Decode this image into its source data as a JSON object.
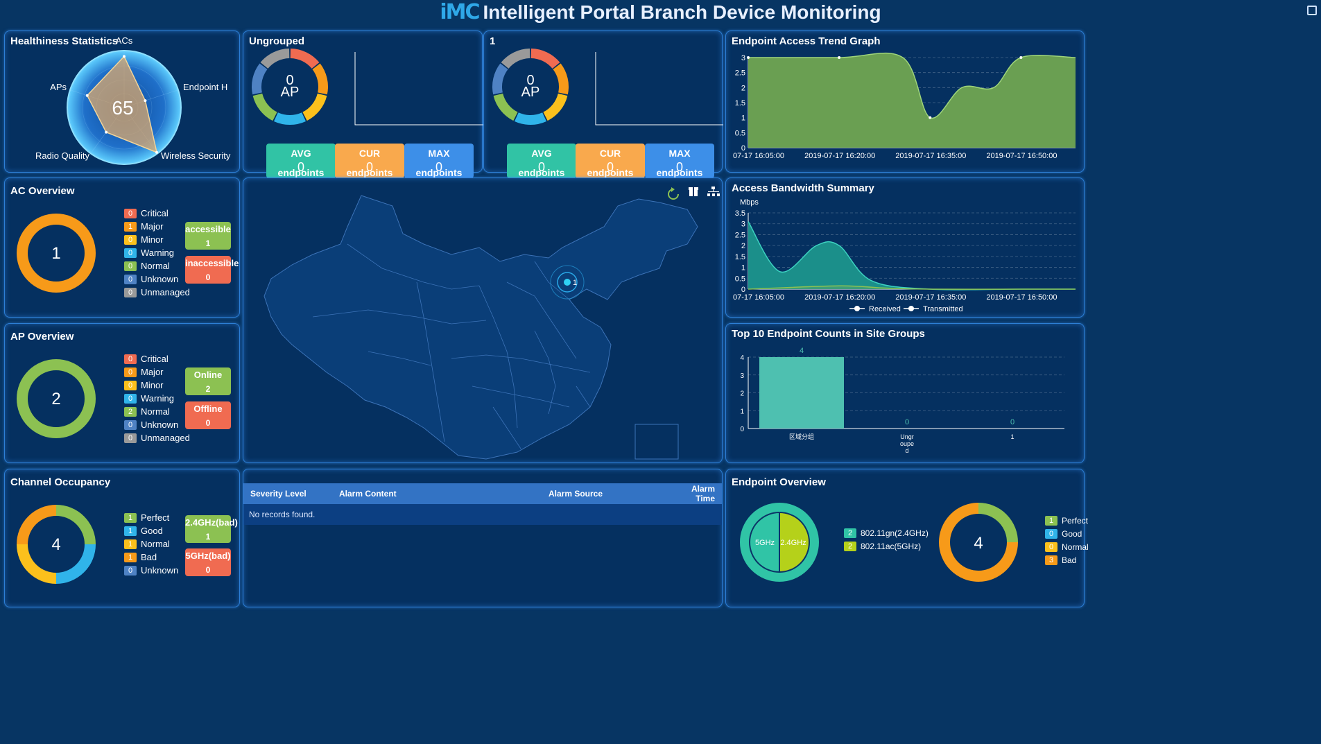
{
  "header": {
    "logo": "iMC",
    "title": "Intelligent Portal Branch Device Monitoring"
  },
  "colors": {
    "critical": "#f06b51",
    "major": "#f79a19",
    "minor": "#fbc01c",
    "warning": "#30b4ea",
    "normal": "#8cc152",
    "unknown": "#4f82c4",
    "unmanaged": "#9a9a9a",
    "teal": "#30c4a6",
    "accent": "#4ec0b0"
  },
  "health": {
    "title": "Healthiness Statistics",
    "score": "65",
    "axes": [
      "ACs",
      "Endpoint H",
      "Wireless Security",
      "Radio Quality",
      "APs"
    ],
    "values": [
      92,
      40,
      100,
      55,
      70
    ]
  },
  "ungrouped": {
    "title": "Ungrouped",
    "center_value": "0",
    "center_unit": "AP",
    "buttons": [
      {
        "label": "AVG",
        "value": "0",
        "sub": "endpoints"
      },
      {
        "label": "CUR",
        "value": "0",
        "sub": "endpoints"
      },
      {
        "label": "MAX",
        "value": "0",
        "sub": "endpoints"
      }
    ]
  },
  "group1": {
    "title": "1",
    "center_value": "0",
    "center_unit": "AP",
    "buttons": [
      {
        "label": "AVG",
        "value": "0",
        "sub": "endpoints"
      },
      {
        "label": "CUR",
        "value": "0",
        "sub": "endpoints"
      },
      {
        "label": "MAX",
        "value": "0",
        "sub": "endpoints"
      }
    ]
  },
  "ac": {
    "title": "AC Overview",
    "total": "1",
    "legend": [
      {
        "count": "0",
        "label": "Critical"
      },
      {
        "count": "1",
        "label": "Major"
      },
      {
        "count": "0",
        "label": "Minor"
      },
      {
        "count": "0",
        "label": "Warning"
      },
      {
        "count": "0",
        "label": "Normal"
      },
      {
        "count": "0",
        "label": "Unknown"
      },
      {
        "count": "0",
        "label": "Unmanaged"
      }
    ],
    "buttons": [
      {
        "label": "accessible",
        "value": "1"
      },
      {
        "label": "inaccessible",
        "value": "0"
      }
    ]
  },
  "ap": {
    "title": "AP Overview",
    "total": "2",
    "legend": [
      {
        "count": "0",
        "label": "Critical"
      },
      {
        "count": "0",
        "label": "Major"
      },
      {
        "count": "0",
        "label": "Minor"
      },
      {
        "count": "0",
        "label": "Warning"
      },
      {
        "count": "2",
        "label": "Normal"
      },
      {
        "count": "0",
        "label": "Unknown"
      },
      {
        "count": "0",
        "label": "Unmanaged"
      }
    ],
    "buttons": [
      {
        "label": "Online",
        "value": "2"
      },
      {
        "label": "Offline",
        "value": "0"
      }
    ]
  },
  "channel": {
    "title": "Channel Occupancy",
    "total": "4",
    "legend": [
      {
        "count": "1",
        "label": "Perfect"
      },
      {
        "count": "1",
        "label": "Good"
      },
      {
        "count": "1",
        "label": "Normal"
      },
      {
        "count": "1",
        "label": "Bad"
      },
      {
        "count": "0",
        "label": "Unknown"
      }
    ],
    "buttons": [
      {
        "label": "2.4GHz(bad)",
        "value": "1"
      },
      {
        "label": "5GHz(bad)",
        "value": "0"
      }
    ]
  },
  "map": {
    "marker_label": "1"
  },
  "alarm": {
    "columns": [
      "Severity Level",
      "Alarm Content",
      "Alarm Source",
      "Alarm Time"
    ],
    "empty": "No records found."
  },
  "endpoint": {
    "title": "Endpoint Overview",
    "inner_left": "5GHz",
    "inner_right": "2.4GHz",
    "band_legend": [
      {
        "count": "2",
        "label": "802.11gn(2.4GHz)"
      },
      {
        "count": "2",
        "label": "802.11ac(5GHz)"
      }
    ],
    "total": "4",
    "quality_legend": [
      {
        "count": "1",
        "label": "Perfect"
      },
      {
        "count": "0",
        "label": "Good"
      },
      {
        "count": "0",
        "label": "Normal"
      },
      {
        "count": "3",
        "label": "Bad"
      }
    ]
  },
  "chart_data": [
    {
      "type": "area",
      "title": "Endpoint Access Trend Graph",
      "x": [
        "07-17 16:05:00",
        "2019-07-17 16:20:00",
        "2019-07-17 16:35:00",
        "2019-07-17 16:50:00"
      ],
      "yticks": [
        "0",
        "0.5",
        "1",
        "1.5",
        "2",
        "2.5",
        "3"
      ],
      "ylim": [
        0,
        3
      ],
      "series": [
        {
          "name": "",
          "points": [
            [
              0,
              3
            ],
            [
              1,
              3
            ],
            [
              1.7,
              3
            ],
            [
              2,
              1
            ],
            [
              2.35,
              2
            ],
            [
              2.7,
              2
            ],
            [
              3,
              3
            ],
            [
              3.6,
              3
            ]
          ]
        }
      ]
    },
    {
      "type": "area",
      "title": "Access Bandwidth Summary",
      "ylabel": "Mbps",
      "x": [
        "07-17 16:05:00",
        "2019-07-17 16:20:00",
        "2019-07-17 16:35:00",
        "2019-07-17 16:50:00"
      ],
      "yticks": [
        "0",
        "0.5",
        "1",
        "1.5",
        "2",
        "2.5",
        "3",
        "3.5"
      ],
      "ylim": [
        0,
        3.5
      ],
      "series": [
        {
          "name": "Received",
          "points": [
            [
              0,
              3.1
            ],
            [
              0.35,
              0.8
            ],
            [
              0.75,
              2
            ],
            [
              1,
              2
            ],
            [
              1.35,
              0.4
            ],
            [
              2,
              0
            ],
            [
              3,
              0
            ],
            [
              3.6,
              0
            ]
          ]
        },
        {
          "name": "Transmitted",
          "points": [
            [
              0,
              0
            ],
            [
              1,
              0.15
            ],
            [
              1.5,
              0.05
            ],
            [
              2,
              0
            ],
            [
              3,
              0
            ],
            [
              3.6,
              0
            ]
          ]
        }
      ]
    },
    {
      "type": "bar",
      "title": "Top 10 Endpoint Counts in Site Groups",
      "categories": [
        "区域分组",
        "Ungr oupe d",
        "1"
      ],
      "values": [
        4,
        0,
        0
      ],
      "yticks": [
        "0",
        "1",
        "2",
        "3",
        "4"
      ],
      "ylim": [
        0,
        4
      ]
    }
  ]
}
